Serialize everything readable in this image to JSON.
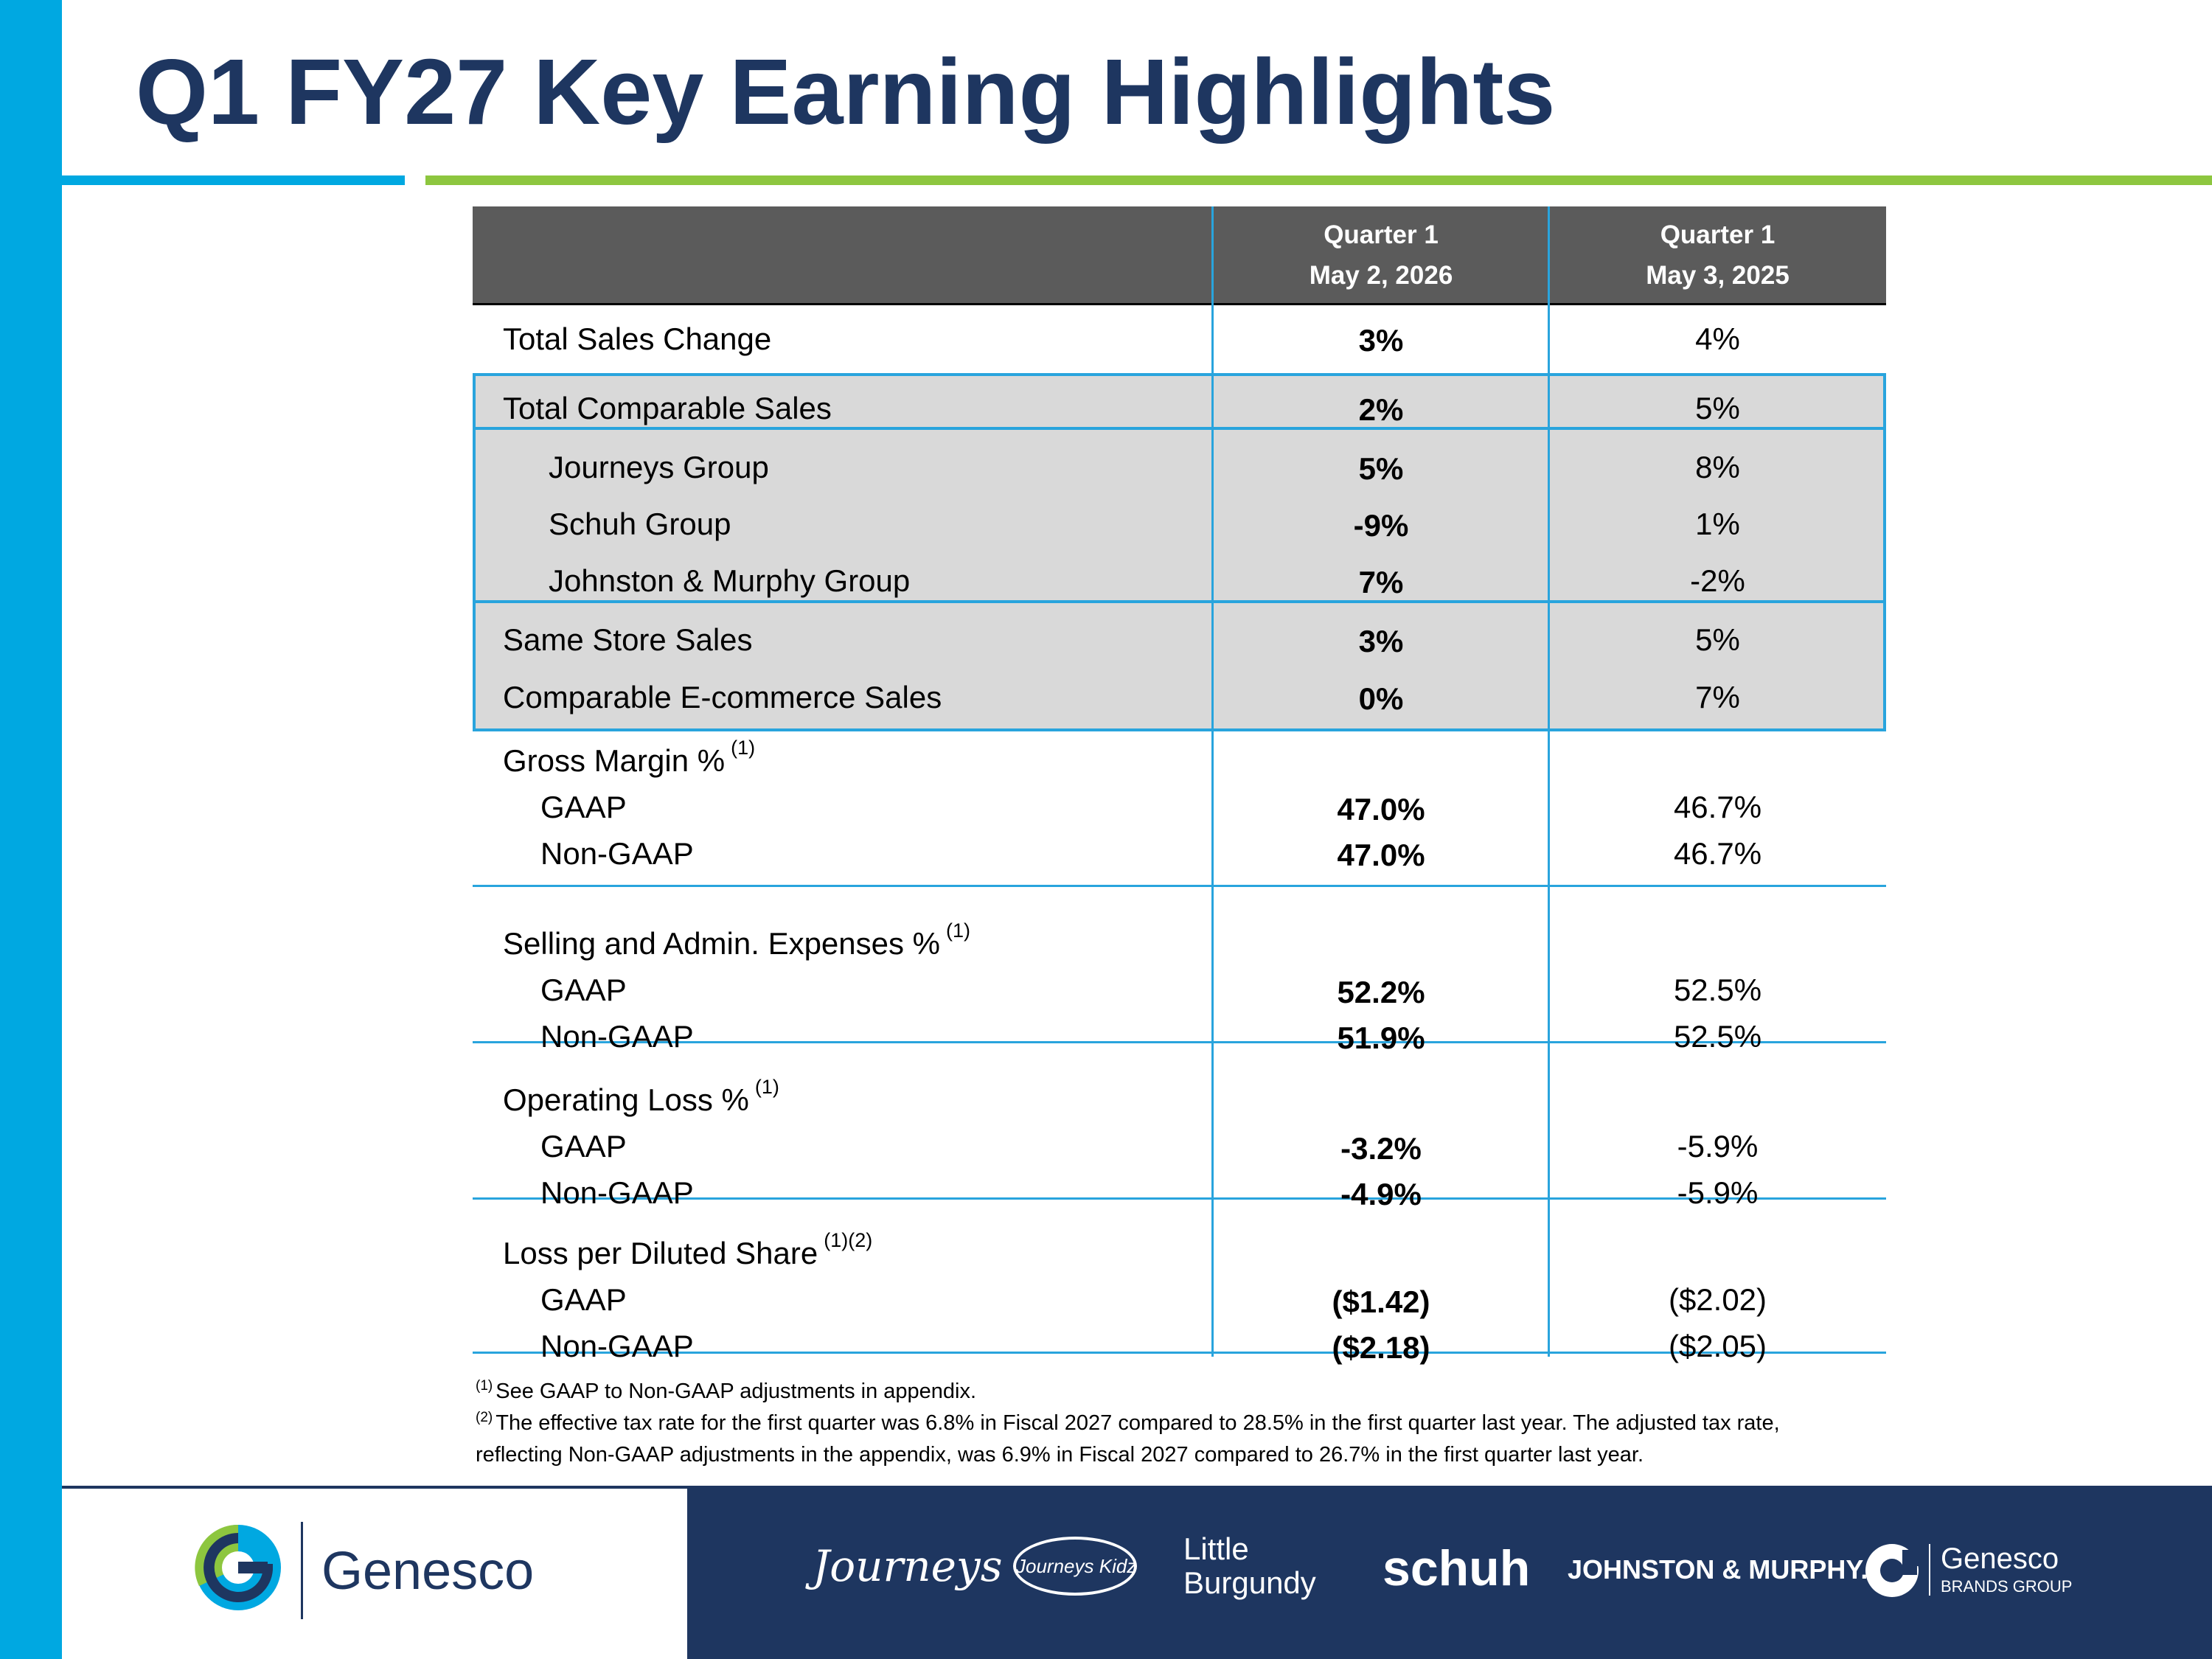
{
  "title": "Q1 FY27 Key Earning Highlights",
  "header": {
    "col1_line1": "Quarter 1",
    "col1_line2": "May 2, 2026",
    "col2_line1": "Quarter 1",
    "col2_line2": "May 3, 2025"
  },
  "rows": [
    {
      "label": "Total Sales Change",
      "current": "3%",
      "prior": "4%"
    },
    {
      "label": "Total Comparable Sales",
      "current": "2%",
      "prior": "5%"
    },
    {
      "label": "Journeys Group",
      "current": "5%",
      "prior": "8%"
    },
    {
      "label": "Schuh Group",
      "current": "-9%",
      "prior": "1%"
    },
    {
      "label": "Johnston & Murphy Group",
      "current": "7%",
      "prior": "-2%"
    },
    {
      "label": "Same Store Sales",
      "current": "3%",
      "prior": "5%"
    },
    {
      "label": "Comparable E-commerce Sales",
      "current": "0%",
      "prior": "7%"
    }
  ],
  "groups": [
    {
      "label": "Gross Margin %",
      "note": "(1)",
      "gaap_label": "GAAP",
      "gaap_current": "47.0%",
      "gaap_prior": "46.7%",
      "nongaap_label": "Non-GAAP",
      "nongaap_current": "47.0%",
      "nongaap_prior": "46.7%"
    },
    {
      "label": "Selling and Admin. Expenses %",
      "note": "(1)",
      "gaap_label": "GAAP",
      "gaap_current": "52.2%",
      "gaap_prior": "52.5%",
      "nongaap_label": "Non-GAAP",
      "nongaap_current": "51.9%",
      "nongaap_prior": "52.5%"
    },
    {
      "label": "Operating Loss %",
      "note": "(1)",
      "gaap_label": "GAAP",
      "gaap_current": "-3.2%",
      "gaap_prior": "-5.9%",
      "nongaap_label": "Non-GAAP",
      "nongaap_current": "-4.9%",
      "nongaap_prior": "-5.9%"
    },
    {
      "label": "Loss per Diluted Share",
      "note": "(1)(2)",
      "gaap_label": "GAAP",
      "gaap_current": "($1.42)",
      "gaap_prior": "($2.02)",
      "nongaap_label": "Non-GAAP",
      "nongaap_current": "($2.18)",
      "nongaap_prior": "($2.05)"
    }
  ],
  "footnotes": [
    {
      "mark": "(1)",
      "text": "See GAAP to Non-GAAP adjustments in appendix."
    },
    {
      "mark": "(2)",
      "text": "The effective tax rate for the first quarter was 6.8% in Fiscal 2027 compared to 28.5% in the first quarter last year. The adjusted tax rate, reflecting Non-GAAP adjustments in the appendix, was 6.9% in Fiscal 2027 compared to 26.7% in the first quarter last year."
    }
  ],
  "footer": {
    "company": "Genesco",
    "brands": {
      "journeys": "Journeys",
      "kidz": "Journeys Kidz",
      "little_1": "Little",
      "little_2": "Burgundy",
      "schuh": "schuh",
      "jm": "JOHNSTON & MURPHY.",
      "gbg_name": "Genesco",
      "gbg_sub": "BRANDS GROUP"
    }
  },
  "colors": {
    "accent_blue": "#00a8e1",
    "accent_green": "#8dc63f",
    "navy": "#1e3660",
    "header_gray": "#5b5b5b",
    "shade_gray": "#d9d9d9"
  }
}
